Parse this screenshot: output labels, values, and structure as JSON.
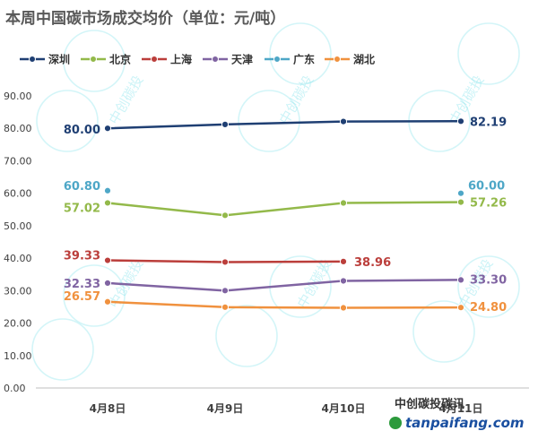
{
  "title": "本周中国碳市场成交均价（单位：元/吨）",
  "colors": {
    "深圳": "#1f3f73",
    "北京": "#93b94a",
    "上海": "#bb3e3b",
    "天津": "#8064a2",
    "广东": "#4ea7c7",
    "湖北": "#f0913e"
  },
  "watermark": {
    "text": "中创碳投",
    "wechat": "中创碳投碳讯",
    "site": "tanpaifang.com"
  },
  "chart_data": {
    "type": "line",
    "title": "本周中国碳市场成交均价（单位：元/吨）",
    "categories": [
      "4月8日",
      "4月9日",
      "4月10日",
      "4月11日"
    ],
    "ylim": [
      0,
      90
    ],
    "yticks": [
      "0.00",
      "10.00",
      "20.00",
      "30.00",
      "40.00",
      "50.00",
      "60.00",
      "70.00",
      "80.00",
      "90.00"
    ],
    "grid": false,
    "legend": "top-left",
    "series": [
      {
        "name": "深圳",
        "values": [
          80.0,
          81.2,
          82.1,
          82.19
        ],
        "labels": [
          "80.00",
          null,
          null,
          "82.19"
        ]
      },
      {
        "name": "北京",
        "values": [
          57.02,
          53.2,
          57.0,
          57.26
        ],
        "labels": [
          "57.02",
          null,
          null,
          "57.26"
        ]
      },
      {
        "name": "上海",
        "values": [
          39.33,
          38.8,
          38.96,
          null
        ],
        "labels": [
          "39.33",
          null,
          "38.96",
          null
        ]
      },
      {
        "name": "天津",
        "values": [
          32.33,
          30.0,
          33.0,
          33.3
        ],
        "labels": [
          "32.33",
          null,
          null,
          "33.30"
        ]
      },
      {
        "name": "广东",
        "values": [
          60.8,
          null,
          null,
          60.0
        ],
        "labels": [
          "60.80",
          null,
          null,
          "60.00"
        ]
      },
      {
        "name": "湖北",
        "values": [
          26.57,
          24.9,
          24.7,
          24.8
        ],
        "labels": [
          "26.57",
          null,
          null,
          "24.80"
        ]
      }
    ]
  }
}
